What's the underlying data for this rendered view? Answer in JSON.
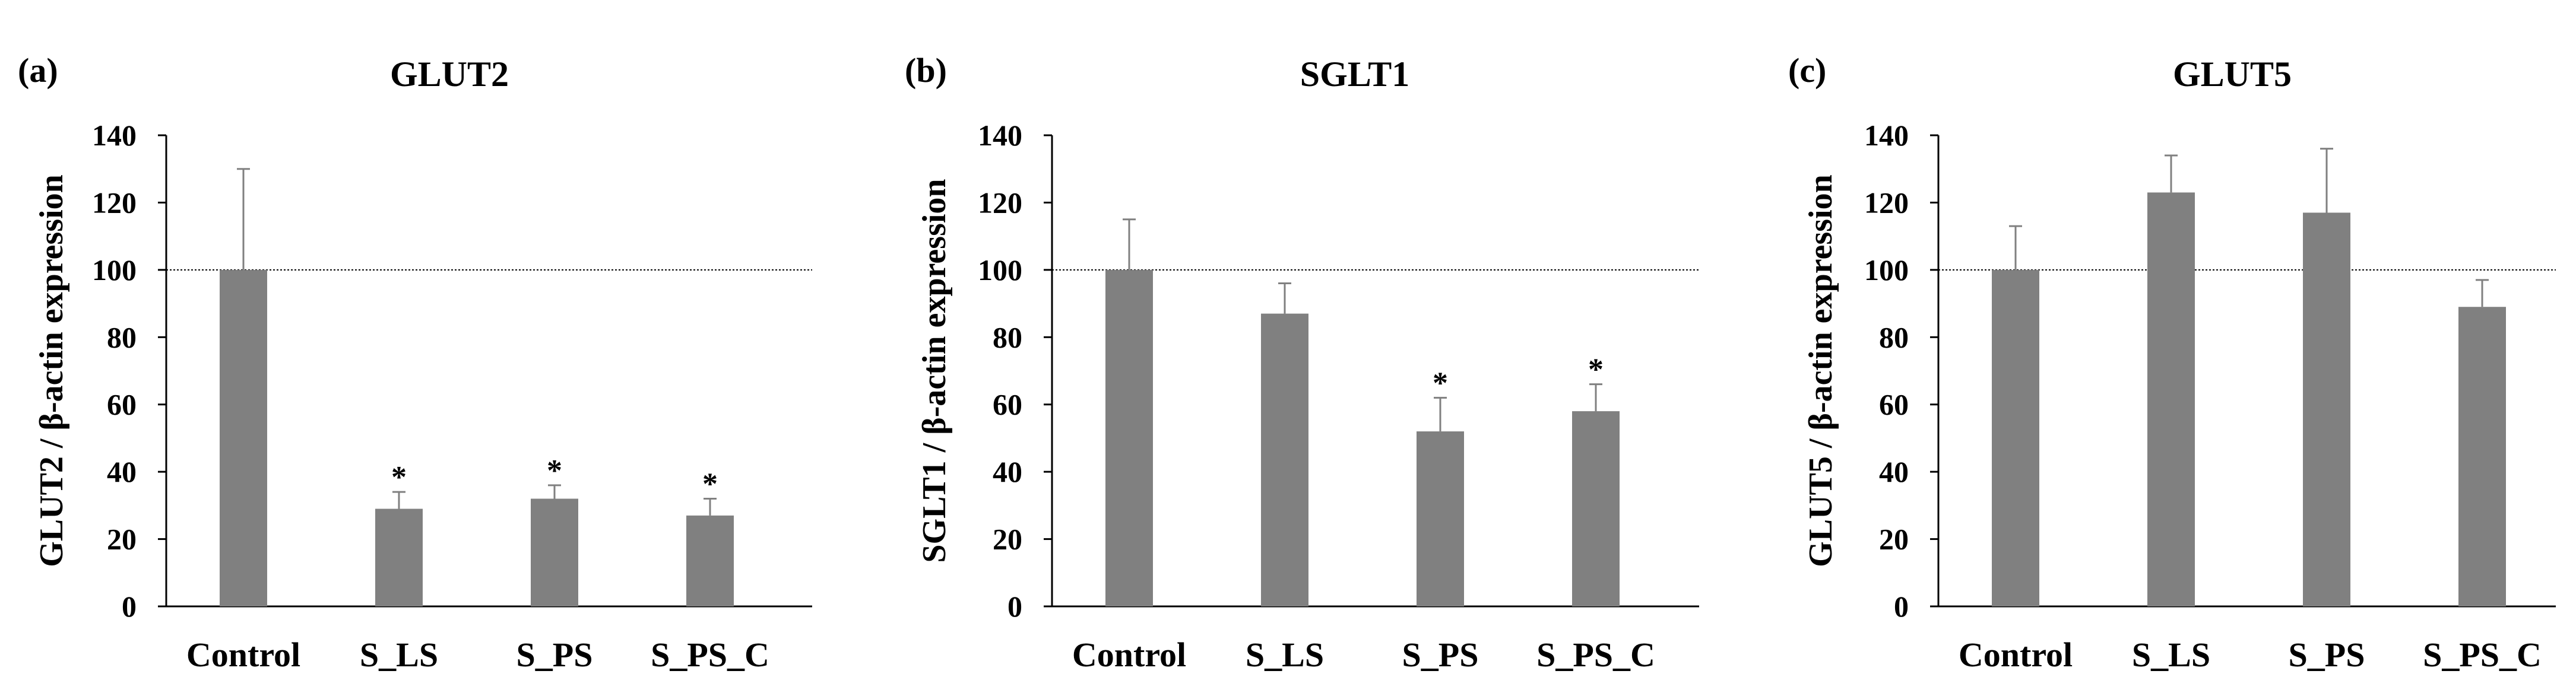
{
  "figure": {
    "y_ticks": [
      0,
      20,
      40,
      60,
      80,
      100,
      120,
      140
    ],
    "reference_line_value": 100,
    "bar_color": "#808080",
    "significance_marker": "*"
  },
  "chart_data": [
    {
      "type": "bar",
      "panel_label": "(a)",
      "title": "GLUT2",
      "ylabel": "GLUT2 / β-actin expression",
      "xlabel": "",
      "ylim": [
        0,
        140
      ],
      "categories": [
        "Control",
        "S_LS",
        "S_PS",
        "S_PS_C"
      ],
      "values": [
        100,
        29,
        32,
        27
      ],
      "errors": [
        30,
        5,
        4,
        5
      ],
      "significant": [
        false,
        true,
        true,
        true
      ]
    },
    {
      "type": "bar",
      "panel_label": "(b)",
      "title": "SGLT1",
      "ylabel": "SGLT1 / β-actin expression",
      "xlabel": "",
      "ylim": [
        0,
        140
      ],
      "categories": [
        "Control",
        "S_LS",
        "S_PS",
        "S_PS_C"
      ],
      "values": [
        100,
        87,
        52,
        58
      ],
      "errors": [
        15,
        9,
        10,
        8
      ],
      "significant": [
        false,
        false,
        true,
        true
      ]
    },
    {
      "type": "bar",
      "panel_label": "(c)",
      "title": "GLUT5",
      "ylabel": "GLUT5 / β-actin expression",
      "xlabel": "",
      "ylim": [
        0,
        140
      ],
      "categories": [
        "Control",
        "S_LS",
        "S_PS",
        "S_PS_C"
      ],
      "values": [
        100,
        123,
        117,
        89
      ],
      "errors": [
        13,
        11,
        19,
        8
      ],
      "significant": [
        false,
        false,
        false,
        false
      ]
    }
  ]
}
